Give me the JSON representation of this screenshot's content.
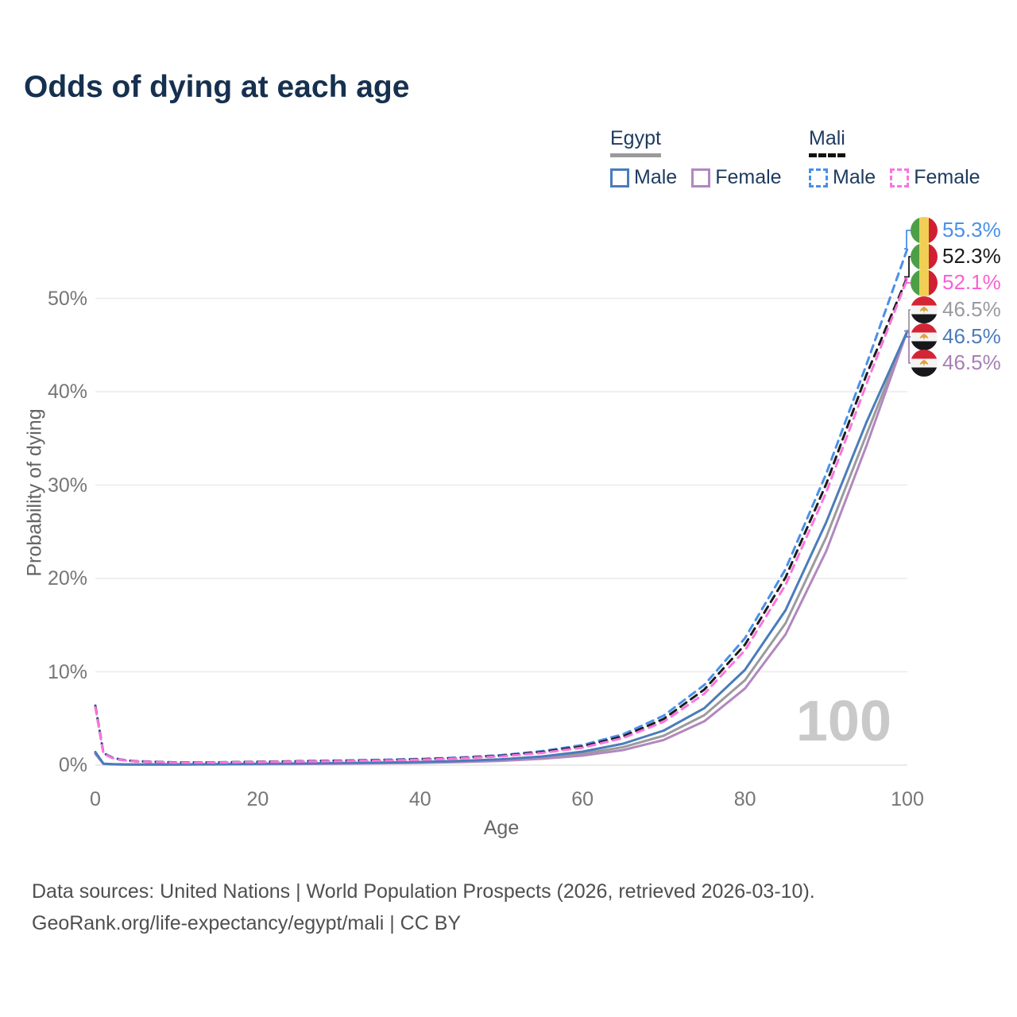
{
  "title": "Odds of dying at each age",
  "watermark_age": "100",
  "legend": {
    "egypt": {
      "title": "Egypt",
      "male": "Male",
      "female": "Female"
    },
    "mali": {
      "title": "Mali",
      "male": "Male",
      "female": "Female"
    }
  },
  "axes": {
    "x_label": "Age",
    "y_label": "Probability of dying",
    "x_ticks": [
      "0",
      "20",
      "40",
      "60",
      "80",
      "100"
    ],
    "y_ticks": [
      "0%",
      "10%",
      "20%",
      "30%",
      "40%",
      "50%"
    ]
  },
  "footer": {
    "line1": "Data sources: United Nations | World Population Prospects (2026, retrieved 2026-03-10).",
    "line2": "GeoRank.org/life-expectancy/egypt/mali | CC BY"
  },
  "colors": {
    "title": "#16304f",
    "legend_text": "#1e3a5f",
    "grid": "#eaeaea",
    "tick_text": "#767676",
    "watermark": "#c9c9c9",
    "egypt_male": "#4a7cba",
    "egypt_female": "#b287bf",
    "egypt_both": "#9b9b9b",
    "mali_male": "#4a90e8",
    "mali_both": "#1c1c1c",
    "mali_female": "#fb74dc"
  },
  "chart_data": {
    "type": "line",
    "title": "Odds of dying at each age",
    "xlabel": "Age",
    "ylabel": "Probability of dying",
    "xlim": [
      0,
      100
    ],
    "ylim_percent": [
      0,
      58
    ],
    "grid": "horizontal",
    "x_ticks": [
      0,
      20,
      40,
      60,
      80,
      100
    ],
    "y_ticks_percent": [
      0,
      10,
      20,
      30,
      40,
      50
    ],
    "ages": [
      0,
      1,
      2,
      3,
      4,
      5,
      10,
      15,
      20,
      25,
      30,
      35,
      40,
      45,
      50,
      55,
      60,
      65,
      70,
      75,
      80,
      85,
      90,
      95,
      100
    ],
    "series": [
      {
        "id": "egypt-both",
        "name": "Egypt Both sexes",
        "style": "solid",
        "color": "#9b9b9b",
        "values": [
          1.3,
          0.14,
          0.1,
          0.08,
          0.07,
          0.07,
          0.07,
          0.09,
          0.12,
          0.15,
          0.18,
          0.23,
          0.29,
          0.39,
          0.54,
          0.8,
          1.22,
          1.93,
          3.15,
          5.35,
          9.1,
          15.2,
          24.4,
          35.5,
          46.5
        ]
      },
      {
        "id": "egypt-female",
        "name": "Egypt Female",
        "style": "solid",
        "color": "#b287bf",
        "values": [
          1.2,
          0.13,
          0.09,
          0.07,
          0.06,
          0.06,
          0.06,
          0.08,
          0.1,
          0.12,
          0.15,
          0.19,
          0.25,
          0.33,
          0.46,
          0.68,
          1.02,
          1.62,
          2.7,
          4.7,
          8.2,
          14.0,
          22.9,
          34.3,
          46.5
        ]
      },
      {
        "id": "egypt-male",
        "name": "Egypt Male",
        "style": "solid",
        "color": "#4a7cba",
        "values": [
          1.4,
          0.16,
          0.11,
          0.09,
          0.08,
          0.08,
          0.08,
          0.11,
          0.15,
          0.18,
          0.22,
          0.27,
          0.34,
          0.46,
          0.63,
          0.93,
          1.45,
          2.3,
          3.7,
          6.1,
          10.2,
          16.6,
          26.0,
          36.8,
          46.5
        ]
      },
      {
        "id": "mali-male",
        "name": "Mali Male",
        "style": "dashed",
        "color": "#4a90e8",
        "values": [
          6.4,
          1.3,
          0.85,
          0.62,
          0.5,
          0.43,
          0.29,
          0.31,
          0.37,
          0.43,
          0.49,
          0.56,
          0.66,
          0.82,
          1.07,
          1.5,
          2.15,
          3.3,
          5.3,
          8.6,
          13.6,
          21.0,
          31.2,
          43.0,
          55.3
        ]
      },
      {
        "id": "mali-both",
        "name": "Mali Both sexes",
        "style": "dashed",
        "color": "#1c1c1c",
        "values": [
          6.3,
          1.27,
          0.82,
          0.59,
          0.48,
          0.41,
          0.28,
          0.29,
          0.35,
          0.4,
          0.46,
          0.52,
          0.62,
          0.77,
          1.0,
          1.4,
          2.0,
          3.08,
          4.95,
          8.1,
          12.9,
          20.1,
          30.1,
          41.9,
          52.3
        ]
      },
      {
        "id": "mali-female",
        "name": "Mali Female",
        "style": "dashed",
        "color": "#fb74dc",
        "values": [
          6.2,
          1.24,
          0.79,
          0.57,
          0.46,
          0.4,
          0.26,
          0.28,
          0.33,
          0.38,
          0.43,
          0.49,
          0.58,
          0.73,
          0.94,
          1.31,
          1.87,
          2.9,
          4.65,
          7.65,
          12.3,
          19.3,
          29.2,
          40.9,
          52.1
        ]
      }
    ],
    "end_labels": [
      {
        "series": "mali-male",
        "flag": "mali",
        "text": "55.3%",
        "color": "#4a90e8"
      },
      {
        "series": "mali-both",
        "flag": "mali",
        "text": "52.3%",
        "color": "#1a1a1a"
      },
      {
        "series": "mali-female",
        "flag": "mali",
        "text": "52.1%",
        "color": "#fb5fd3"
      },
      {
        "series": "egypt-both",
        "flag": "egypt",
        "text": "46.5%",
        "color": "#9a9aa0"
      },
      {
        "series": "egypt-male",
        "flag": "egypt",
        "text": "46.5%",
        "color": "#4a7cba"
      },
      {
        "series": "egypt-female",
        "flag": "egypt",
        "text": "46.5%",
        "color": "#a77fb5"
      }
    ]
  }
}
